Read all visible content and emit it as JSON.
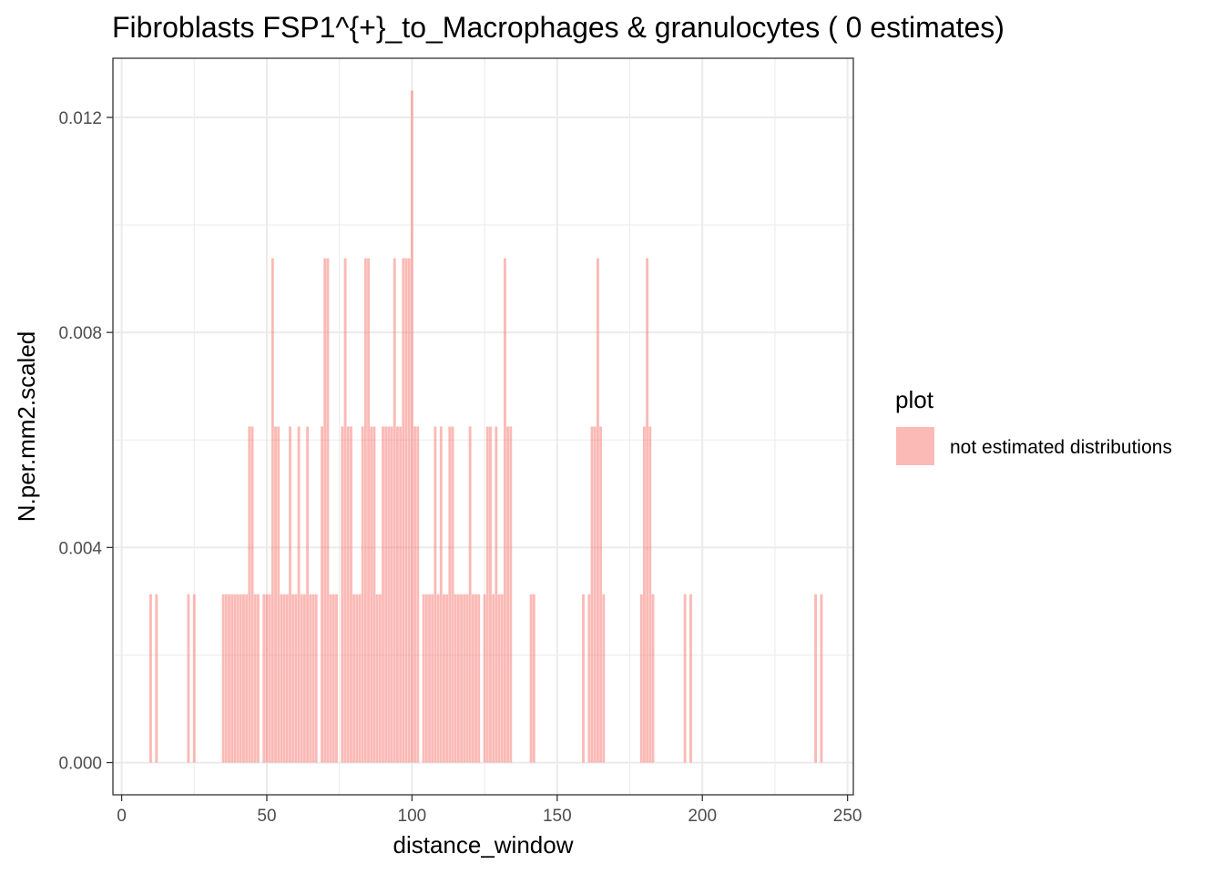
{
  "chart_data": {
    "type": "bar",
    "title": "Fibroblasts FSP1^{+}_to_Macrophages & granulocytes ( 0 estimates)",
    "xlabel": "distance_window",
    "ylabel": "N.per.mm2.scaled",
    "xlim": [
      -3,
      252
    ],
    "ylim": [
      -0.0006,
      0.0131
    ],
    "x_ticks": [
      0,
      50,
      100,
      150,
      200,
      250
    ],
    "x_tick_labels": [
      "0",
      "50",
      "100",
      "150",
      "200",
      "250"
    ],
    "y_ticks": [
      0.0,
      0.004,
      0.008,
      0.012
    ],
    "y_tick_labels": [
      "0.000",
      "0.004",
      "0.008",
      "0.012"
    ],
    "grid": true,
    "legend": {
      "title": "plot",
      "position": "right",
      "entries": [
        {
          "label": "not estimated distributions",
          "color": "#F8766D"
        }
      ]
    },
    "bar_color": "#F8766D",
    "bar_opacity": 0.5,
    "series": [
      {
        "values": [
          {
            "x": 10,
            "y": 0.00313
          },
          {
            "x": 12,
            "y": 0.00313
          },
          {
            "x": 23,
            "y": 0.00313
          },
          {
            "x": 25,
            "y": 0.00313
          },
          {
            "x": 35,
            "y": 0.00313
          },
          {
            "x": 36,
            "y": 0.00313
          },
          {
            "x": 37,
            "y": 0.00313
          },
          {
            "x": 38,
            "y": 0.00313
          },
          {
            "x": 39,
            "y": 0.00313
          },
          {
            "x": 40,
            "y": 0.00313
          },
          {
            "x": 41,
            "y": 0.00313
          },
          {
            "x": 42,
            "y": 0.00313
          },
          {
            "x": 43,
            "y": 0.00313
          },
          {
            "x": 44,
            "y": 0.00625
          },
          {
            "x": 45,
            "y": 0.00625
          },
          {
            "x": 46,
            "y": 0.00313
          },
          {
            "x": 47,
            "y": 0.00313
          },
          {
            "x": 49,
            "y": 0.00313
          },
          {
            "x": 50,
            "y": 0.00313
          },
          {
            "x": 51,
            "y": 0.00313
          },
          {
            "x": 52,
            "y": 0.00938
          },
          {
            "x": 53,
            "y": 0.00625
          },
          {
            "x": 54,
            "y": 0.00625
          },
          {
            "x": 55,
            "y": 0.00313
          },
          {
            "x": 56,
            "y": 0.00313
          },
          {
            "x": 57,
            "y": 0.00313
          },
          {
            "x": 58,
            "y": 0.00625
          },
          {
            "x": 59,
            "y": 0.00313
          },
          {
            "x": 60,
            "y": 0.00313
          },
          {
            "x": 61,
            "y": 0.00625
          },
          {
            "x": 62,
            "y": 0.00313
          },
          {
            "x": 63,
            "y": 0.00313
          },
          {
            "x": 64,
            "y": 0.00625
          },
          {
            "x": 65,
            "y": 0.00313
          },
          {
            "x": 66,
            "y": 0.00313
          },
          {
            "x": 67,
            "y": 0.00313
          },
          {
            "x": 69,
            "y": 0.00625
          },
          {
            "x": 70,
            "y": 0.00938
          },
          {
            "x": 71,
            "y": 0.00938
          },
          {
            "x": 72,
            "y": 0.00313
          },
          {
            "x": 73,
            "y": 0.00313
          },
          {
            "x": 74,
            "y": 0.00313
          },
          {
            "x": 76,
            "y": 0.00625
          },
          {
            "x": 77,
            "y": 0.00938
          },
          {
            "x": 78,
            "y": 0.00625
          },
          {
            "x": 79,
            "y": 0.00625
          },
          {
            "x": 80,
            "y": 0.00313
          },
          {
            "x": 81,
            "y": 0.00313
          },
          {
            "x": 82,
            "y": 0.00313
          },
          {
            "x": 83,
            "y": 0.00625
          },
          {
            "x": 84,
            "y": 0.00938
          },
          {
            "x": 85,
            "y": 0.00938
          },
          {
            "x": 86,
            "y": 0.00625
          },
          {
            "x": 87,
            "y": 0.00625
          },
          {
            "x": 88,
            "y": 0.00313
          },
          {
            "x": 89,
            "y": 0.00313
          },
          {
            "x": 90,
            "y": 0.00625
          },
          {
            "x": 91,
            "y": 0.00625
          },
          {
            "x": 92,
            "y": 0.00625
          },
          {
            "x": 93,
            "y": 0.00625
          },
          {
            "x": 94,
            "y": 0.00938
          },
          {
            "x": 95,
            "y": 0.00625
          },
          {
            "x": 96,
            "y": 0.00625
          },
          {
            "x": 97,
            "y": 0.00938
          },
          {
            "x": 98,
            "y": 0.00938
          },
          {
            "x": 99,
            "y": 0.00938
          },
          {
            "x": 100,
            "y": 0.0125
          },
          {
            "x": 101,
            "y": 0.00625
          },
          {
            "x": 102,
            "y": 0.00625
          },
          {
            "x": 104,
            "y": 0.00313
          },
          {
            "x": 105,
            "y": 0.00313
          },
          {
            "x": 106,
            "y": 0.00313
          },
          {
            "x": 107,
            "y": 0.00313
          },
          {
            "x": 108,
            "y": 0.00625
          },
          {
            "x": 109,
            "y": 0.00313
          },
          {
            "x": 110,
            "y": 0.00625
          },
          {
            "x": 111,
            "y": 0.00313
          },
          {
            "x": 112,
            "y": 0.00313
          },
          {
            "x": 113,
            "y": 0.00625
          },
          {
            "x": 114,
            "y": 0.00625
          },
          {
            "x": 115,
            "y": 0.00313
          },
          {
            "x": 116,
            "y": 0.00313
          },
          {
            "x": 117,
            "y": 0.00313
          },
          {
            "x": 118,
            "y": 0.00313
          },
          {
            "x": 119,
            "y": 0.00313
          },
          {
            "x": 120,
            "y": 0.00625
          },
          {
            "x": 121,
            "y": 0.00313
          },
          {
            "x": 122,
            "y": 0.00313
          },
          {
            "x": 123,
            "y": 0.00313
          },
          {
            "x": 125,
            "y": 0.00313
          },
          {
            "x": 126,
            "y": 0.00625
          },
          {
            "x": 127,
            "y": 0.00625
          },
          {
            "x": 128,
            "y": 0.00313
          },
          {
            "x": 129,
            "y": 0.00625
          },
          {
            "x": 130,
            "y": 0.00313
          },
          {
            "x": 131,
            "y": 0.00313
          },
          {
            "x": 132,
            "y": 0.00938
          },
          {
            "x": 133,
            "y": 0.00625
          },
          {
            "x": 134,
            "y": 0.00625
          },
          {
            "x": 141,
            "y": 0.00313
          },
          {
            "x": 142,
            "y": 0.00313
          },
          {
            "x": 159,
            "y": 0.00313
          },
          {
            "x": 161,
            "y": 0.00313
          },
          {
            "x": 162,
            "y": 0.00625
          },
          {
            "x": 163,
            "y": 0.00625
          },
          {
            "x": 164,
            "y": 0.00938
          },
          {
            "x": 165,
            "y": 0.00625
          },
          {
            "x": 166,
            "y": 0.00313
          },
          {
            "x": 179,
            "y": 0.00313
          },
          {
            "x": 180,
            "y": 0.00625
          },
          {
            "x": 181,
            "y": 0.00938
          },
          {
            "x": 182,
            "y": 0.00625
          },
          {
            "x": 183,
            "y": 0.00313
          },
          {
            "x": 194,
            "y": 0.00313
          },
          {
            "x": 196,
            "y": 0.00313
          },
          {
            "x": 239,
            "y": 0.00313
          },
          {
            "x": 241,
            "y": 0.00313
          }
        ]
      }
    ]
  }
}
